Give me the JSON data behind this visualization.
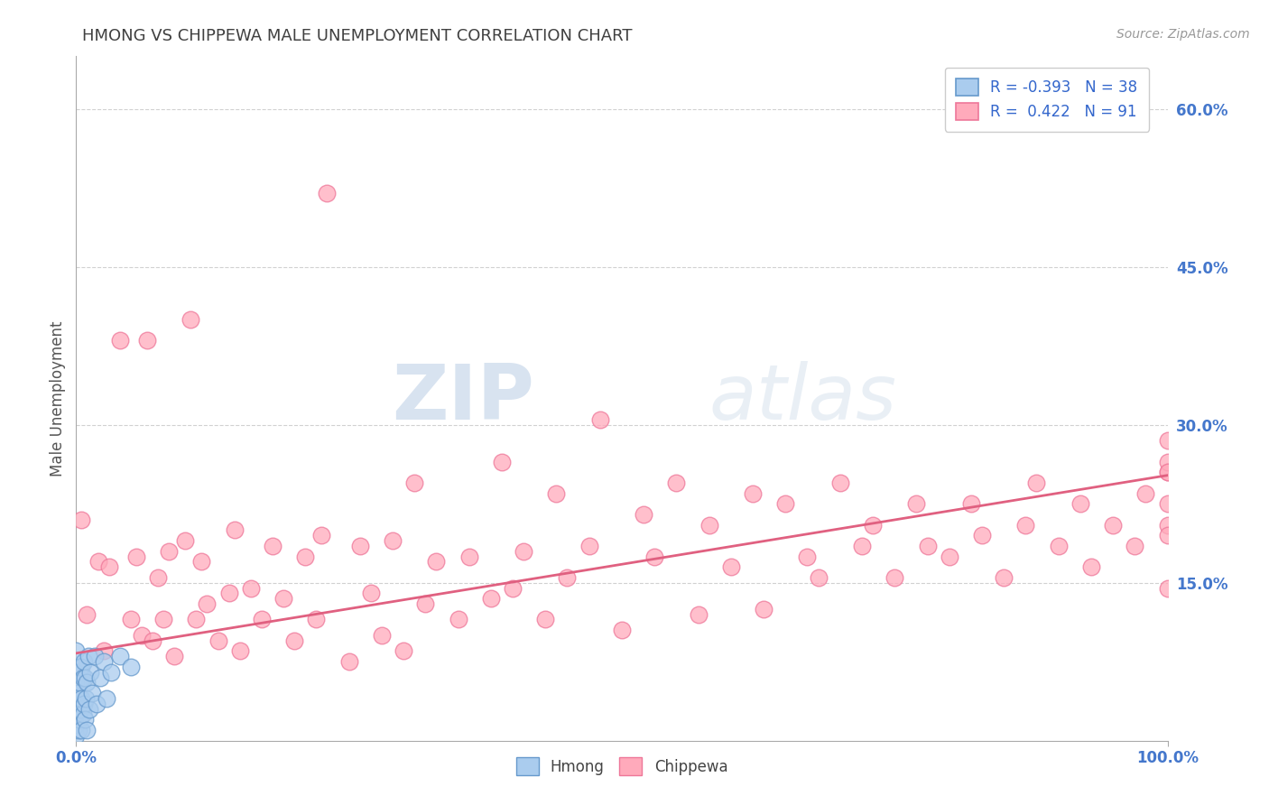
{
  "title": "HMONG VS CHIPPEWA MALE UNEMPLOYMENT CORRELATION CHART",
  "source": "Source: ZipAtlas.com",
  "ylabel": "Male Unemployment",
  "xlim": [
    0.0,
    1.0
  ],
  "ylim": [
    0.0,
    0.65
  ],
  "xticks": [
    0.0,
    1.0
  ],
  "xtick_labels": [
    "0.0%",
    "100.0%"
  ],
  "yticks": [
    0.15,
    0.3,
    0.45,
    0.6
  ],
  "ytick_labels": [
    "15.0%",
    "30.0%",
    "45.0%",
    "60.0%"
  ],
  "hmong_color": "#aaccee",
  "chippewa_color": "#ffaabb",
  "hmong_edge": "#6699cc",
  "chippewa_edge": "#ee7799",
  "trendline_color": "#e06080",
  "legend_hmong_R": "-0.393",
  "legend_hmong_N": "38",
  "legend_chippewa_R": "0.422",
  "legend_chippewa_N": "91",
  "watermark_zip": "ZIP",
  "watermark_atlas": "atlas",
  "background_color": "#ffffff",
  "grid_color": "#cccccc",
  "title_color": "#404040",
  "axis_tick_color": "#4477cc",
  "ylabel_color": "#555555",
  "trendline_x0": 0.0,
  "trendline_y0": 0.083,
  "trendline_x1": 1.0,
  "trendline_y1": 0.252,
  "chippewa_x": [
    0.005,
    0.01,
    0.02,
    0.025,
    0.03,
    0.04,
    0.05,
    0.055,
    0.06,
    0.065,
    0.07,
    0.075,
    0.08,
    0.085,
    0.09,
    0.1,
    0.105,
    0.11,
    0.115,
    0.12,
    0.13,
    0.14,
    0.145,
    0.15,
    0.16,
    0.17,
    0.18,
    0.19,
    0.2,
    0.21,
    0.22,
    0.225,
    0.23,
    0.25,
    0.26,
    0.27,
    0.28,
    0.29,
    0.3,
    0.31,
    0.32,
    0.33,
    0.35,
    0.36,
    0.38,
    0.39,
    0.4,
    0.41,
    0.43,
    0.44,
    0.45,
    0.47,
    0.48,
    0.5,
    0.52,
    0.53,
    0.55,
    0.57,
    0.58,
    0.6,
    0.62,
    0.63,
    0.65,
    0.67,
    0.68,
    0.7,
    0.72,
    0.73,
    0.75,
    0.77,
    0.78,
    0.8,
    0.82,
    0.83,
    0.85,
    0.87,
    0.88,
    0.9,
    0.92,
    0.93,
    0.95,
    0.97,
    0.98,
    1.0,
    1.0,
    1.0,
    1.0,
    1.0,
    1.0,
    1.0,
    1.0
  ],
  "chippewa_y": [
    0.21,
    0.12,
    0.17,
    0.085,
    0.165,
    0.38,
    0.115,
    0.175,
    0.1,
    0.38,
    0.095,
    0.155,
    0.115,
    0.18,
    0.08,
    0.19,
    0.4,
    0.115,
    0.17,
    0.13,
    0.095,
    0.14,
    0.2,
    0.085,
    0.145,
    0.115,
    0.185,
    0.135,
    0.095,
    0.175,
    0.115,
    0.195,
    0.52,
    0.075,
    0.185,
    0.14,
    0.1,
    0.19,
    0.085,
    0.245,
    0.13,
    0.17,
    0.115,
    0.175,
    0.135,
    0.265,
    0.145,
    0.18,
    0.115,
    0.235,
    0.155,
    0.185,
    0.305,
    0.105,
    0.215,
    0.175,
    0.245,
    0.12,
    0.205,
    0.165,
    0.235,
    0.125,
    0.225,
    0.175,
    0.155,
    0.245,
    0.185,
    0.205,
    0.155,
    0.225,
    0.185,
    0.175,
    0.225,
    0.195,
    0.155,
    0.205,
    0.245,
    0.185,
    0.225,
    0.165,
    0.205,
    0.185,
    0.235,
    0.145,
    0.205,
    0.255,
    0.195,
    0.265,
    0.225,
    0.255,
    0.285
  ],
  "hmong_x": [
    0.0,
    0.0,
    0.0,
    0.0,
    0.0,
    0.0,
    0.0,
    0.0,
    0.002,
    0.002,
    0.003,
    0.003,
    0.004,
    0.004,
    0.005,
    0.005,
    0.005,
    0.006,
    0.006,
    0.007,
    0.007,
    0.008,
    0.008,
    0.009,
    0.01,
    0.01,
    0.011,
    0.012,
    0.013,
    0.015,
    0.017,
    0.019,
    0.022,
    0.025,
    0.028,
    0.032,
    0.04,
    0.05
  ],
  "hmong_y": [
    0.005,
    0.015,
    0.025,
    0.035,
    0.045,
    0.055,
    0.065,
    0.085,
    0.01,
    0.045,
    0.02,
    0.055,
    0.03,
    0.07,
    0.01,
    0.04,
    0.07,
    0.025,
    0.06,
    0.035,
    0.075,
    0.02,
    0.06,
    0.04,
    0.01,
    0.055,
    0.08,
    0.03,
    0.065,
    0.045,
    0.08,
    0.035,
    0.06,
    0.075,
    0.04,
    0.065,
    0.08,
    0.07
  ]
}
